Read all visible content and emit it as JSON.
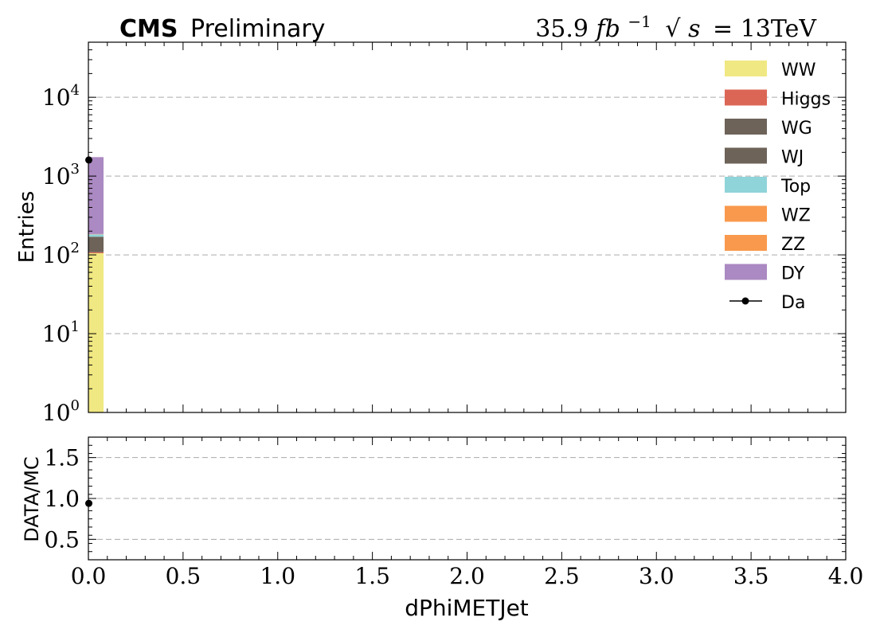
{
  "header": {
    "cms": "CMS",
    "preliminary": "Preliminary",
    "lumi_value": "35.9",
    "lumi_unit": "fb",
    "lumi_exp": "−1",
    "sqrt_s": "s",
    "energy": "= 13TeV"
  },
  "chart_data": [
    {
      "type": "bar",
      "stacked": true,
      "yscale": "log",
      "ylabel": "Entries",
      "xlabel": "",
      "xlim": [
        0.0,
        4.0
      ],
      "ylim": [
        1,
        50000
      ],
      "bin_edges": [
        0.0,
        0.08
      ],
      "y_ticks": [
        {
          "value": 1,
          "mant": "10",
          "exp": "0"
        },
        {
          "value": 10,
          "mant": "10",
          "exp": "1"
        },
        {
          "value": 100,
          "mant": "10",
          "exp": "2"
        },
        {
          "value": 1000,
          "mant": "10",
          "exp": "3"
        },
        {
          "value": 10000,
          "mant": "10",
          "exp": "4"
        }
      ],
      "grid": "y-dashed",
      "legend_position": "top-right",
      "series": [
        {
          "name": "WW",
          "color": "#f0e882",
          "values": [
            105
          ]
        },
        {
          "name": "Higgs",
          "color": "#dc6655",
          "values": [
            3
          ]
        },
        {
          "name": "WG",
          "color": "#6e6359",
          "values": [
            2
          ]
        },
        {
          "name": "WJ",
          "color": "#6e6359",
          "values": [
            60
          ]
        },
        {
          "name": "Top",
          "color": "#8fd4d9",
          "values": [
            12
          ]
        },
        {
          "name": "WZ",
          "color": "#f9994d",
          "values": [
            1
          ]
        },
        {
          "name": "ZZ",
          "color": "#f9994d",
          "values": [
            1
          ]
        },
        {
          "name": "DY",
          "color": "#ab89c2",
          "values": [
            1556
          ]
        }
      ],
      "data": {
        "name": "Da",
        "x": [
          0.04
        ],
        "y": [
          1600
        ]
      }
    },
    {
      "type": "scatter",
      "ylabel": "DATA/MC",
      "xlabel": "dPhiMETJet",
      "xlim": [
        0.0,
        4.0
      ],
      "ylim": [
        0.25,
        1.75
      ],
      "y_ticks": [
        {
          "value": 0.5,
          "label": "0.5"
        },
        {
          "value": 1.0,
          "label": "1.0"
        },
        {
          "value": 1.5,
          "label": "1.5"
        }
      ],
      "x_ticks": [
        {
          "value": 0.0,
          "label": "0.0"
        },
        {
          "value": 0.5,
          "label": "0.5"
        },
        {
          "value": 1.0,
          "label": "1.0"
        },
        {
          "value": 1.5,
          "label": "1.5"
        },
        {
          "value": 2.0,
          "label": "2.0"
        },
        {
          "value": 2.5,
          "label": "2.5"
        },
        {
          "value": 3.0,
          "label": "3.0"
        },
        {
          "value": 3.5,
          "label": "3.5"
        },
        {
          "value": 4.0,
          "label": "4.0"
        }
      ],
      "grid": "y-dashed",
      "points": {
        "x": [
          0.04
        ],
        "y": [
          0.94
        ]
      }
    }
  ]
}
